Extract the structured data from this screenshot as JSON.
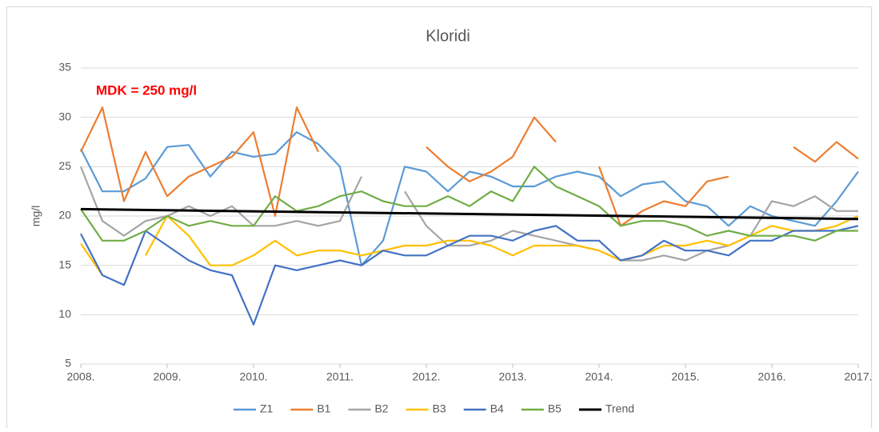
{
  "chart_data": {
    "type": "line",
    "title": "Kloridi",
    "y_label": "mg/l",
    "annotation": "MDK = 250 mg/l",
    "annotation_color": "#ff0000",
    "x": [
      2008,
      2008.25,
      2008.5,
      2008.75,
      2009,
      2009.25,
      2009.5,
      2009.75,
      2010,
      2010.25,
      2010.5,
      2010.75,
      2011,
      2011.25,
      2011.5,
      2011.75,
      2012,
      2012.25,
      2012.5,
      2012.75,
      2013,
      2013.25,
      2013.5,
      2013.75,
      2014,
      2014.25,
      2014.5,
      2014.75,
      2015,
      2015.25,
      2015.5,
      2015.75,
      2016,
      2016.25,
      2016.5,
      2016.75,
      2017
    ],
    "xlim": [
      2008,
      2017
    ],
    "xticks": [
      {
        "value": 2008,
        "label": "2008."
      },
      {
        "value": 2009,
        "label": "2009."
      },
      {
        "value": 2010,
        "label": "2010."
      },
      {
        "value": 2011,
        "label": "2011."
      },
      {
        "value": 2012,
        "label": "2012."
      },
      {
        "value": 2013,
        "label": "2013."
      },
      {
        "value": 2014,
        "label": "2014."
      },
      {
        "value": 2015,
        "label": "2015."
      },
      {
        "value": 2016,
        "label": "2016."
      },
      {
        "value": 2017,
        "label": "2017."
      }
    ],
    "ylim": [
      5,
      35
    ],
    "yticks": [
      5,
      10,
      15,
      20,
      25,
      30,
      35
    ],
    "grid": true,
    "legend": "bottom",
    "series": [
      {
        "name": "Z1",
        "color": "#5b9bd5",
        "values": [
          26.8,
          22.5,
          22.5,
          23.8,
          27,
          27.2,
          24,
          26.5,
          26,
          26.3,
          28.5,
          27.3,
          25,
          15,
          17.5,
          25,
          24.5,
          22.5,
          24.5,
          24,
          23,
          23,
          24,
          24.5,
          24,
          22,
          23.2,
          23.5,
          21.5,
          21,
          19,
          21,
          20,
          19.5,
          19,
          21.5,
          24.5
        ]
      },
      {
        "name": "B1",
        "color": "#ed7d31",
        "values": [
          26.5,
          31,
          21.5,
          26.5,
          22,
          24,
          25,
          26,
          28.5,
          20,
          31,
          26.5,
          null,
          null,
          null,
          null,
          27,
          25,
          23.5,
          24.5,
          26,
          30,
          27.5,
          null,
          25,
          19,
          20.5,
          21.5,
          21,
          23.5,
          24,
          null,
          null,
          27,
          25.5,
          27.5,
          25.8
        ]
      },
      {
        "name": "B2",
        "color": "#a5a5a5",
        "values": [
          25,
          19.5,
          18,
          19.5,
          20,
          21,
          20,
          21,
          19,
          19,
          19.5,
          19,
          19.5,
          24,
          null,
          22.5,
          19,
          17,
          17,
          17.5,
          18.5,
          18,
          17.5,
          17,
          16.5,
          15.5,
          15.5,
          16,
          15.5,
          16.5,
          17,
          18,
          21.5,
          21,
          22,
          20.5,
          20.5
        ]
      },
      {
        "name": "B3",
        "color": "#ffc000",
        "values": [
          17.2,
          14,
          null,
          16,
          20,
          18,
          15,
          15,
          16,
          17.5,
          16,
          16.5,
          16.5,
          16,
          16.5,
          17,
          17,
          17.5,
          17.5,
          17,
          16,
          17,
          17,
          17,
          16.5,
          15.5,
          16,
          17,
          17,
          17.5,
          17,
          18,
          19,
          18.5,
          18.5,
          19,
          20
        ]
      },
      {
        "name": "B4",
        "color": "#4472c4",
        "values": [
          18.2,
          14,
          13,
          18.5,
          17,
          15.5,
          14.5,
          14,
          9,
          15,
          14.5,
          15,
          15.5,
          15,
          16.5,
          16,
          16,
          17,
          18,
          18,
          17.5,
          18.5,
          19,
          17.5,
          17.5,
          15.5,
          16,
          17.5,
          16.5,
          16.5,
          16,
          17.5,
          17.5,
          18.5,
          18.5,
          18.5,
          19
        ]
      },
      {
        "name": "B5",
        "color": "#70ad47",
        "values": [
          20.7,
          17.5,
          17.5,
          18.5,
          20,
          19,
          19.5,
          19,
          19,
          22,
          20.5,
          21,
          22,
          22.5,
          21.5,
          21,
          21,
          22,
          21,
          22.5,
          21.5,
          25,
          23,
          22,
          21,
          19,
          19.5,
          19.5,
          19,
          18,
          18.5,
          18,
          18,
          18,
          17.5,
          18.5,
          18.5
        ]
      },
      {
        "name": "Trend",
        "color": "#000000",
        "x": [
          2008,
          2017
        ],
        "values": [
          20.7,
          19.7
        ]
      }
    ]
  }
}
